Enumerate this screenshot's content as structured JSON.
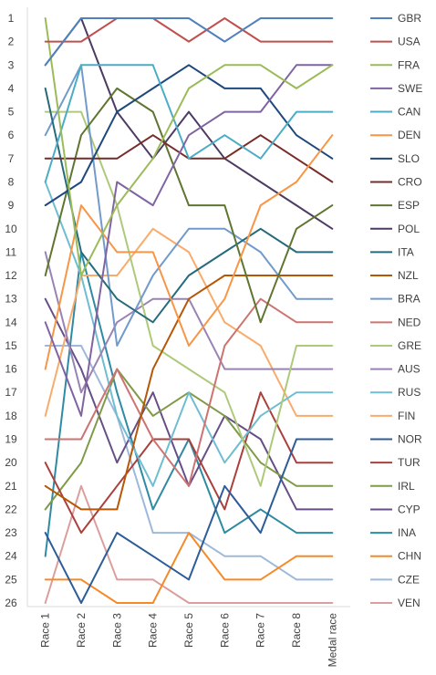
{
  "chart_data": {
    "type": "line",
    "title": "",
    "xlabel": "",
    "ylabel": "",
    "y_axis_reversed": true,
    "ylim": [
      1,
      26
    ],
    "yticks": [
      1,
      2,
      3,
      4,
      5,
      6,
      7,
      8,
      9,
      10,
      11,
      12,
      13,
      14,
      15,
      16,
      17,
      18,
      19,
      20,
      21,
      22,
      23,
      24,
      25,
      26
    ],
    "categories": [
      "Race 1",
      "Race 2",
      "Race 3",
      "Race 4",
      "Race 5",
      "Race 6",
      "Race 7",
      "Race 8",
      "Medal race"
    ],
    "grid": false,
    "legend_position": "right",
    "series": [
      {
        "name": "GBR",
        "color": "#4F81BD",
        "values": [
          3,
          1,
          1,
          1,
          1,
          2,
          1,
          1,
          1
        ]
      },
      {
        "name": "USA",
        "color": "#C0504D",
        "values": [
          2,
          2,
          1,
          1,
          2,
          1,
          2,
          2,
          2
        ]
      },
      {
        "name": "FRA",
        "color": "#9BBB59",
        "values": [
          1,
          12,
          9,
          7,
          4,
          3,
          3,
          4,
          3
        ]
      },
      {
        "name": "SWE",
        "color": "#8064A2",
        "values": [
          14,
          18,
          8,
          9,
          6,
          5,
          5,
          3,
          3
        ]
      },
      {
        "name": "CAN",
        "color": "#4BACC6",
        "values": [
          8,
          3,
          3,
          3,
          7,
          6,
          7,
          5,
          5
        ]
      },
      {
        "name": "DEN",
        "color": "#F79646",
        "values": [
          16,
          9,
          11,
          11,
          15,
          13,
          9,
          8,
          6
        ]
      },
      {
        "name": "SLO",
        "color": "#1F497D",
        "values": [
          9,
          8,
          5,
          4,
          3,
          4,
          4,
          6,
          7
        ]
      },
      {
        "name": "CRO",
        "color": "#772C2A",
        "values": [
          7,
          7,
          7,
          6,
          7,
          7,
          6,
          7,
          8
        ]
      },
      {
        "name": "ESP",
        "color": "#5F7530",
        "values": [
          12,
          6,
          4,
          5,
          9,
          9,
          14,
          10,
          9
        ]
      },
      {
        "name": "POL",
        "color": "#4D3B62",
        "values": [
          3,
          1,
          5,
          7,
          5,
          7,
          8,
          9,
          10
        ]
      },
      {
        "name": "ITA",
        "color": "#276A7C",
        "values": [
          4,
          11,
          13,
          14,
          12,
          11,
          10,
          11,
          11
        ]
      },
      {
        "name": "NZL",
        "color": "#B65708",
        "values": [
          21,
          22,
          22,
          16,
          13,
          12,
          12,
          12,
          12
        ]
      },
      {
        "name": "BRA",
        "color": "#729ACA",
        "values": [
          6,
          3,
          15,
          12,
          10,
          10,
          11,
          13,
          13
        ]
      },
      {
        "name": "NED",
        "color": "#CD7371",
        "values": [
          19,
          19,
          16,
          19,
          21,
          15,
          13,
          14,
          14
        ]
      },
      {
        "name": "GRE",
        "color": "#AFC97A",
        "values": [
          5,
          5,
          9,
          15,
          16,
          17,
          21,
          15,
          15
        ]
      },
      {
        "name": "AUS",
        "color": "#9983B5",
        "values": [
          11,
          17,
          14,
          13,
          13,
          16,
          16,
          16,
          16
        ]
      },
      {
        "name": "RUS",
        "color": "#6FBDD1",
        "values": [
          8,
          12,
          18,
          21,
          17,
          20,
          18,
          17,
          17
        ]
      },
      {
        "name": "FIN",
        "color": "#F9AB6B",
        "values": [
          18,
          12,
          12,
          10,
          11,
          14,
          15,
          18,
          18
        ]
      },
      {
        "name": "NOR",
        "color": "#2C5D98",
        "values": [
          23,
          26,
          23,
          24,
          25,
          21,
          23,
          19,
          19
        ]
      },
      {
        "name": "TUR",
        "color": "#A9403D",
        "values": [
          20,
          23,
          21,
          19,
          19,
          22,
          17,
          20,
          20
        ]
      },
      {
        "name": "IRL",
        "color": "#7F9A48",
        "values": [
          22,
          20,
          16,
          18,
          17,
          18,
          20,
          21,
          21
        ]
      },
      {
        "name": "CYP",
        "color": "#664F86",
        "values": [
          13,
          16,
          20,
          17,
          21,
          18,
          19,
          22,
          22
        ]
      },
      {
        "name": "INA",
        "color": "#2F8AA3",
        "values": [
          24,
          11,
          17,
          22,
          19,
          23,
          22,
          23,
          23
        ]
      },
      {
        "name": "CHN",
        "color": "#F68A28",
        "values": [
          25,
          25,
          26,
          26,
          23,
          25,
          25,
          24,
          24
        ]
      },
      {
        "name": "CZE",
        "color": "#9DB9DA",
        "values": [
          15,
          15,
          18,
          23,
          23,
          24,
          24,
          25,
          25
        ]
      },
      {
        "name": "VEN",
        "color": "#DB9E9C",
        "values": [
          26,
          21,
          25,
          25,
          26,
          26,
          26,
          26,
          26
        ]
      }
    ]
  }
}
